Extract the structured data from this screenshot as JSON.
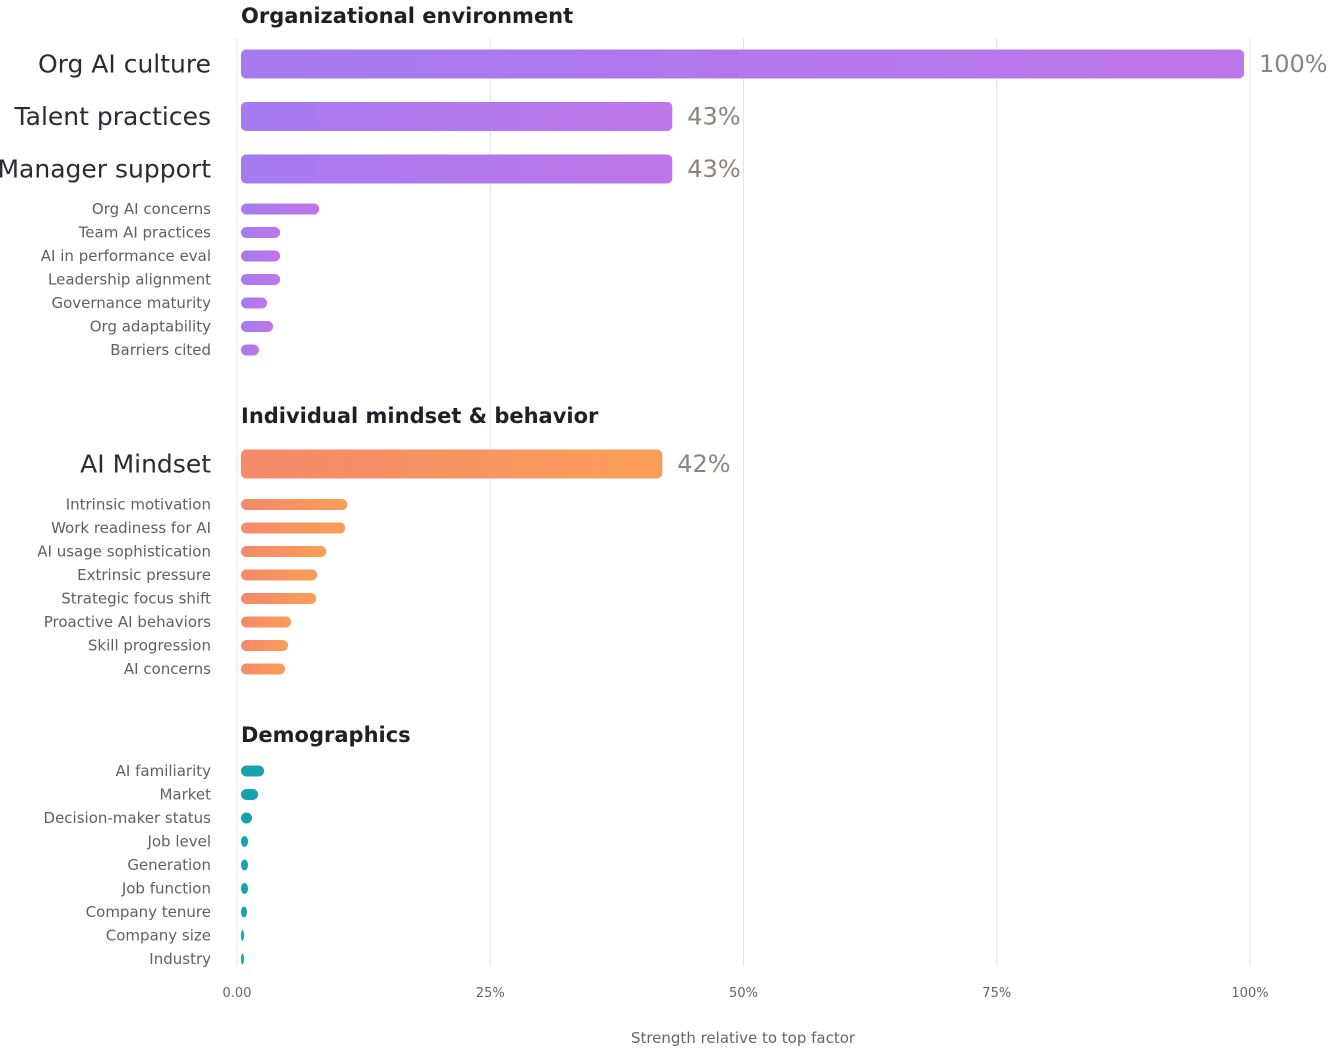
{
  "chart_data": {
    "type": "bar",
    "orientation": "horizontal",
    "xlabel": "Strength relative to top factor",
    "xlim": [
      0,
      100
    ],
    "xticks": [
      {
        "value": 0,
        "label": "0.00"
      },
      {
        "value": 25,
        "label": "25%"
      },
      {
        "value": 50,
        "label": "50%"
      },
      {
        "value": 75,
        "label": "75%"
      },
      {
        "value": 100,
        "label": "100%"
      }
    ],
    "grid": true,
    "groups": [
      {
        "title": "Organizational environment",
        "colors": [
          "#a57bf0",
          "#be76e8"
        ],
        "bars": [
          {
            "label": "Org AI culture",
            "value": 100,
            "value_label": "100%",
            "emphasis": true
          },
          {
            "label": "Talent practices",
            "value": 43,
            "value_label": "43%",
            "emphasis": true
          },
          {
            "label": "Manager support",
            "value": 43,
            "value_label": "43%",
            "emphasis": true
          },
          {
            "label": "Org AI concerns",
            "value": 7.8
          },
          {
            "label": "Team AI practices",
            "value": 3.9
          },
          {
            "label": "AI in performance eval",
            "value": 3.9
          },
          {
            "label": "Leadership alignment",
            "value": 3.9
          },
          {
            "label": "Governance maturity",
            "value": 2.6
          },
          {
            "label": "Org adaptability",
            "value": 3.2
          },
          {
            "label": "Barriers cited",
            "value": 1.8
          }
        ]
      },
      {
        "title": "Individual mindset & behavior",
        "colors": [
          "#f5896a",
          "#f99e58"
        ],
        "bars": [
          {
            "label": "AI Mindset",
            "value": 42,
            "value_label": "42%",
            "emphasis": true
          },
          {
            "label": "Intrinsic motivation",
            "value": 10.6
          },
          {
            "label": "Work readiness for AI",
            "value": 10.4
          },
          {
            "label": "AI usage sophistication",
            "value": 8.5
          },
          {
            "label": "Extrinsic pressure",
            "value": 7.6
          },
          {
            "label": "Strategic focus shift",
            "value": 7.5
          },
          {
            "label": "Proactive AI behaviors",
            "value": 5.0
          },
          {
            "label": "Skill progression",
            "value": 4.7
          },
          {
            "label": "AI concerns",
            "value": 4.4
          }
        ]
      },
      {
        "title": "Demographics",
        "colors": [
          "#17a2af",
          "#17a2af"
        ],
        "bars": [
          {
            "label": "AI familiarity",
            "value": 2.3
          },
          {
            "label": "Market",
            "value": 1.7
          },
          {
            "label": "Decision-maker status",
            "value": 1.1
          },
          {
            "label": "Job level",
            "value": 0.7
          },
          {
            "label": "Generation",
            "value": 0.7
          },
          {
            "label": "Job function",
            "value": 0.7
          },
          {
            "label": "Company tenure",
            "value": 0.6
          },
          {
            "label": "Company size",
            "value": 0.3
          },
          {
            "label": "Industry",
            "value": 0.2
          }
        ]
      }
    ]
  }
}
